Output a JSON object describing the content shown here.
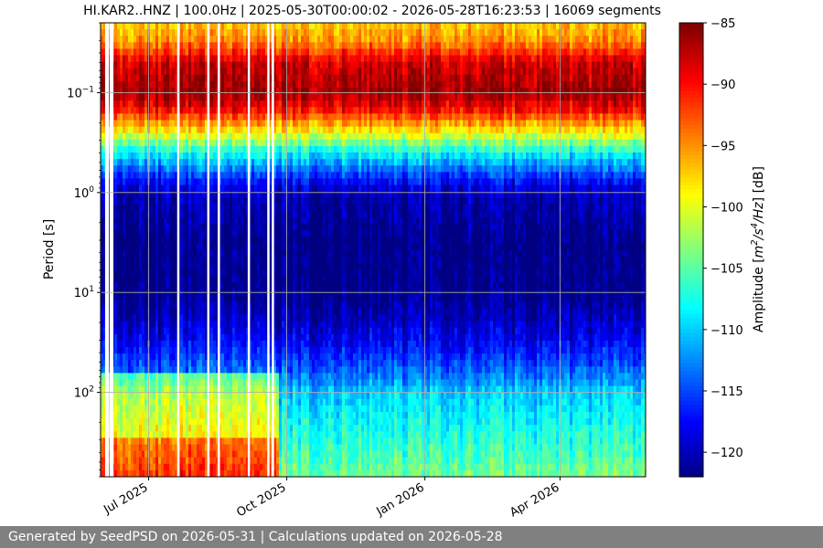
{
  "chart_data": {
    "type": "heatmap",
    "title": "HI.KAR2..HNZ | 100.0Hz | 2025-05-30T00:00:02 - 2026-05-28T16:23:53 | 16069 segments",
    "ylabel": "Period [s]",
    "yscale": "log",
    "y_inverted": true,
    "ylim": [
      0.02,
      700
    ],
    "y_ticks": [
      {
        "value": 0.1,
        "base": "10",
        "exp": "−1"
      },
      {
        "value": 1,
        "base": "10",
        "exp": "0"
      },
      {
        "value": 10,
        "base": "10",
        "exp": "1"
      },
      {
        "value": 100,
        "base": "10",
        "exp": "2"
      }
    ],
    "x_range": [
      "2025-05-30",
      "2026-05-28"
    ],
    "x_ticks": [
      {
        "date": "2025-07-01",
        "label": "Jul 2025"
      },
      {
        "date": "2025-10-01",
        "label": "Oct 2025"
      },
      {
        "date": "2026-01-01",
        "label": "Jan 2026"
      },
      {
        "date": "2026-04-01",
        "label": "Apr 2026"
      }
    ],
    "grid": true,
    "colorbar": {
      "label": "Amplitude [m²/s⁴/Hz] [dB]",
      "label_parts": [
        "Amplitude [",
        "m",
        "2",
        "/s",
        "4",
        "/Hz",
        "] [dB]"
      ],
      "colormap": "jet",
      "range": [
        -122,
        -85
      ],
      "ticks": [
        "−85",
        "−90",
        "−95",
        "−100",
        "−105",
        "−110",
        "−115",
        "−120"
      ],
      "tick_values": [
        -85,
        -90,
        -95,
        -100,
        -105,
        -110,
        -115,
        -120
      ]
    },
    "amplitude_profile_db": [
      {
        "period": 0.02,
        "db": -97
      },
      {
        "period": 0.03,
        "db": -95
      },
      {
        "period": 0.05,
        "db": -88
      },
      {
        "period": 0.1,
        "db": -86
      },
      {
        "period": 0.15,
        "db": -90
      },
      {
        "period": 0.25,
        "db": -99
      },
      {
        "period": 0.4,
        "db": -108
      },
      {
        "period": 0.7,
        "db": -116
      },
      {
        "period": 1,
        "db": -120
      },
      {
        "period": 3,
        "db": -122
      },
      {
        "period": 10,
        "db": -122
      },
      {
        "period": 30,
        "db": -118
      },
      {
        "period": 70,
        "db": -113
      },
      {
        "period": 100,
        "db": -110
      },
      {
        "period": 200,
        "db": -108
      },
      {
        "period": 400,
        "db": -106
      },
      {
        "period": 700,
        "db": -104
      }
    ],
    "noisy_period": {
      "from": "2025-05-30",
      "to": "2025-09-25",
      "db_offset_above_100s": 8
    },
    "data_gaps": [
      "2025-06-02",
      "2025-06-03",
      "2025-06-05",
      "2025-06-06",
      "2025-07-20",
      "2025-08-09",
      "2025-08-16",
      "2025-09-05",
      "2025-09-18",
      "2025-09-21"
    ]
  },
  "footer": {
    "text": "Generated by SeedPSD on 2026-05-31 | Calculations updated on 2026-05-28"
  }
}
